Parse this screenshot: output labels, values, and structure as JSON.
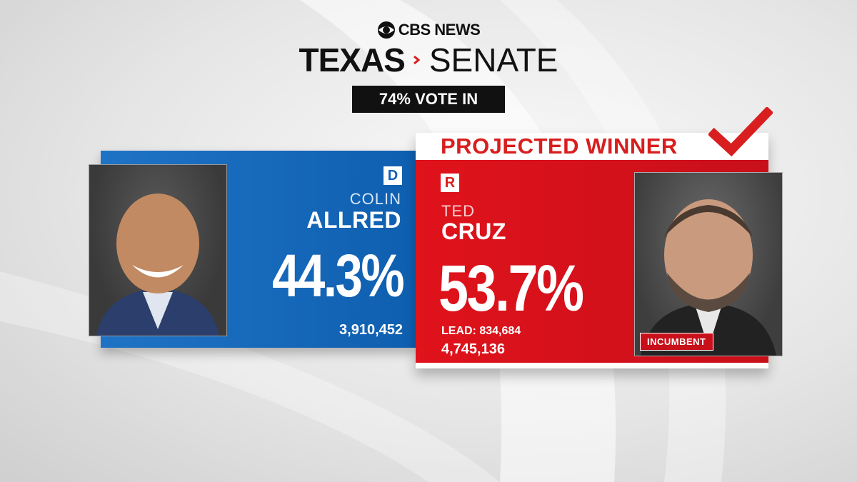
{
  "header": {
    "network": "CBS NEWS",
    "state": "TEXAS",
    "office": "SENATE",
    "vote_in": "74% VOTE IN"
  },
  "democrat": {
    "party": "D",
    "first_name": "COLIN",
    "last_name": "ALLRED",
    "percent": "44.3%",
    "votes": "3,910,452",
    "color": "#1560b7"
  },
  "republican": {
    "party": "R",
    "first_name": "TED",
    "last_name": "CRUZ",
    "percent": "53.7%",
    "lead": "LEAD: 834,684",
    "votes": "4,745,136",
    "status": "PROJECTED WINNER",
    "tag": "INCUMBENT",
    "color": "#d81e1e"
  },
  "icons": [
    "cbs-eye-icon",
    "chevron-right-icon",
    "checkmark-icon"
  ]
}
